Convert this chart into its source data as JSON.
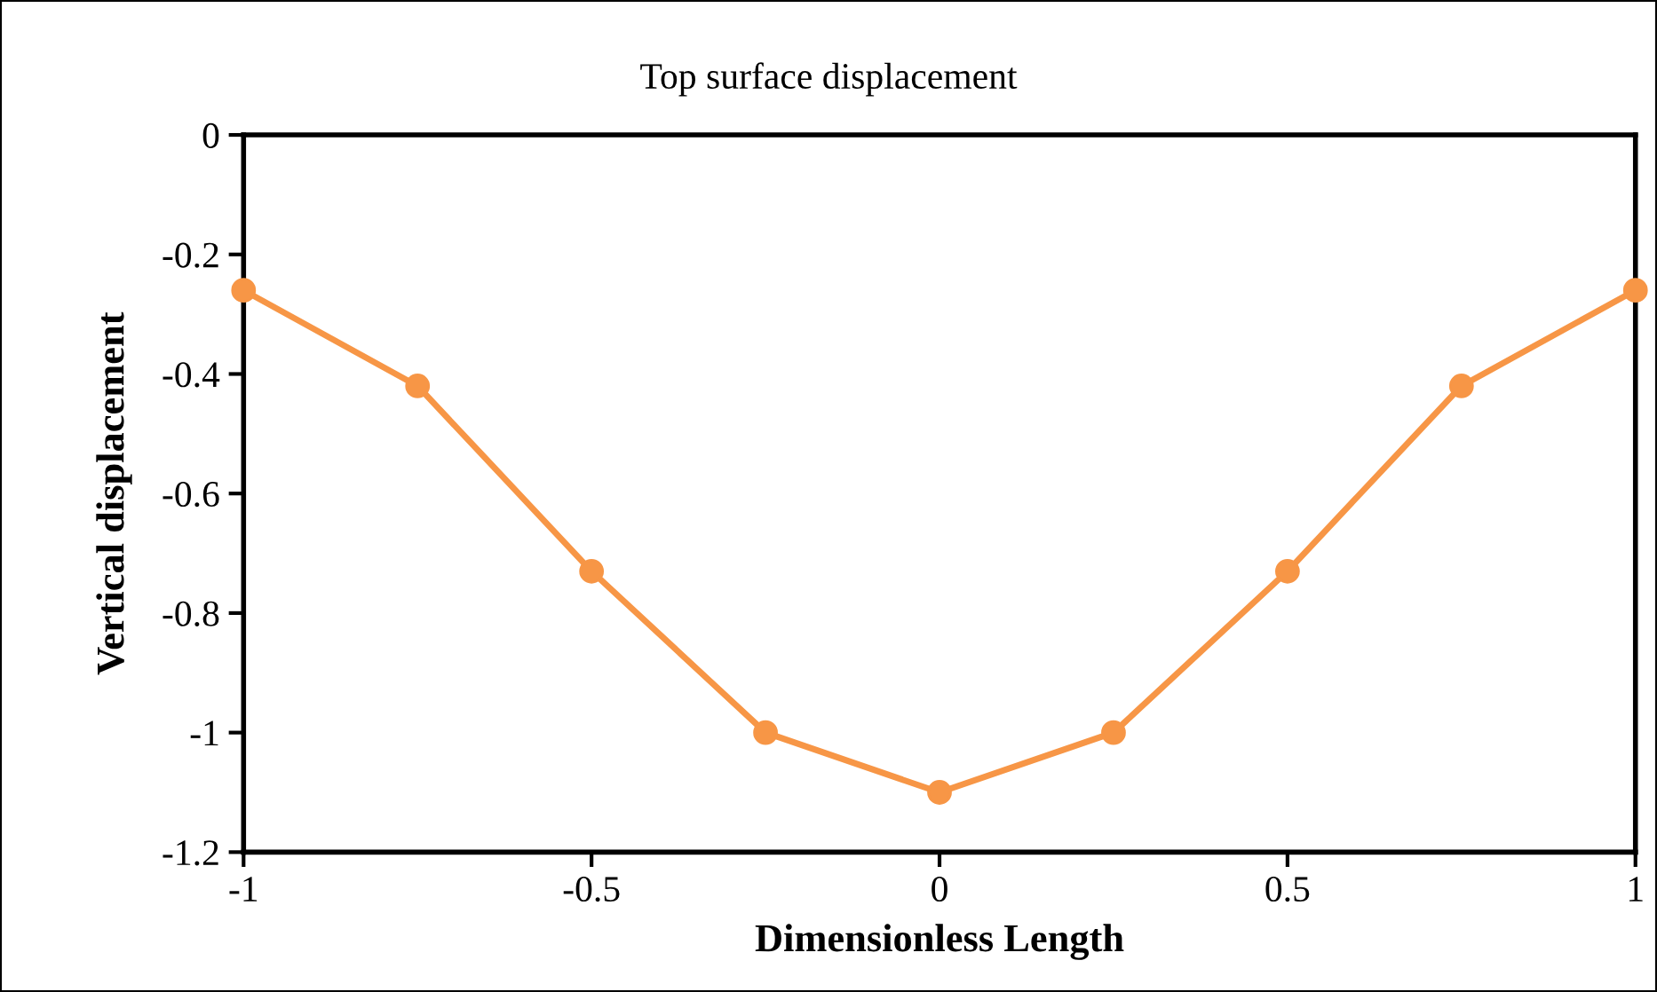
{
  "chart_data": {
    "type": "line",
    "title": "Top surface displacement",
    "xlabel": "Dimensionless Length",
    "ylabel": "Vertical displacement",
    "x": [
      -1,
      -0.75,
      -0.5,
      -0.25,
      0,
      0.25,
      0.5,
      0.75,
      1
    ],
    "series": [
      {
        "color": "#f79646",
        "values": [
          -0.26,
          -0.42,
          -0.73,
          -1.0,
          -1.1,
          -1.0,
          -0.73,
          -0.42,
          -0.26
        ]
      }
    ],
    "xlim": [
      -1,
      1
    ],
    "xticks": [
      -1,
      -0.5,
      0,
      0.5,
      1
    ],
    "ylim": [
      -1.2,
      0
    ],
    "yticks": [
      -1.2,
      -1,
      -0.8,
      -0.6,
      -0.4,
      -0.2,
      0
    ],
    "grid": false,
    "legend": false,
    "marker": "circle",
    "line_style": "solid"
  }
}
